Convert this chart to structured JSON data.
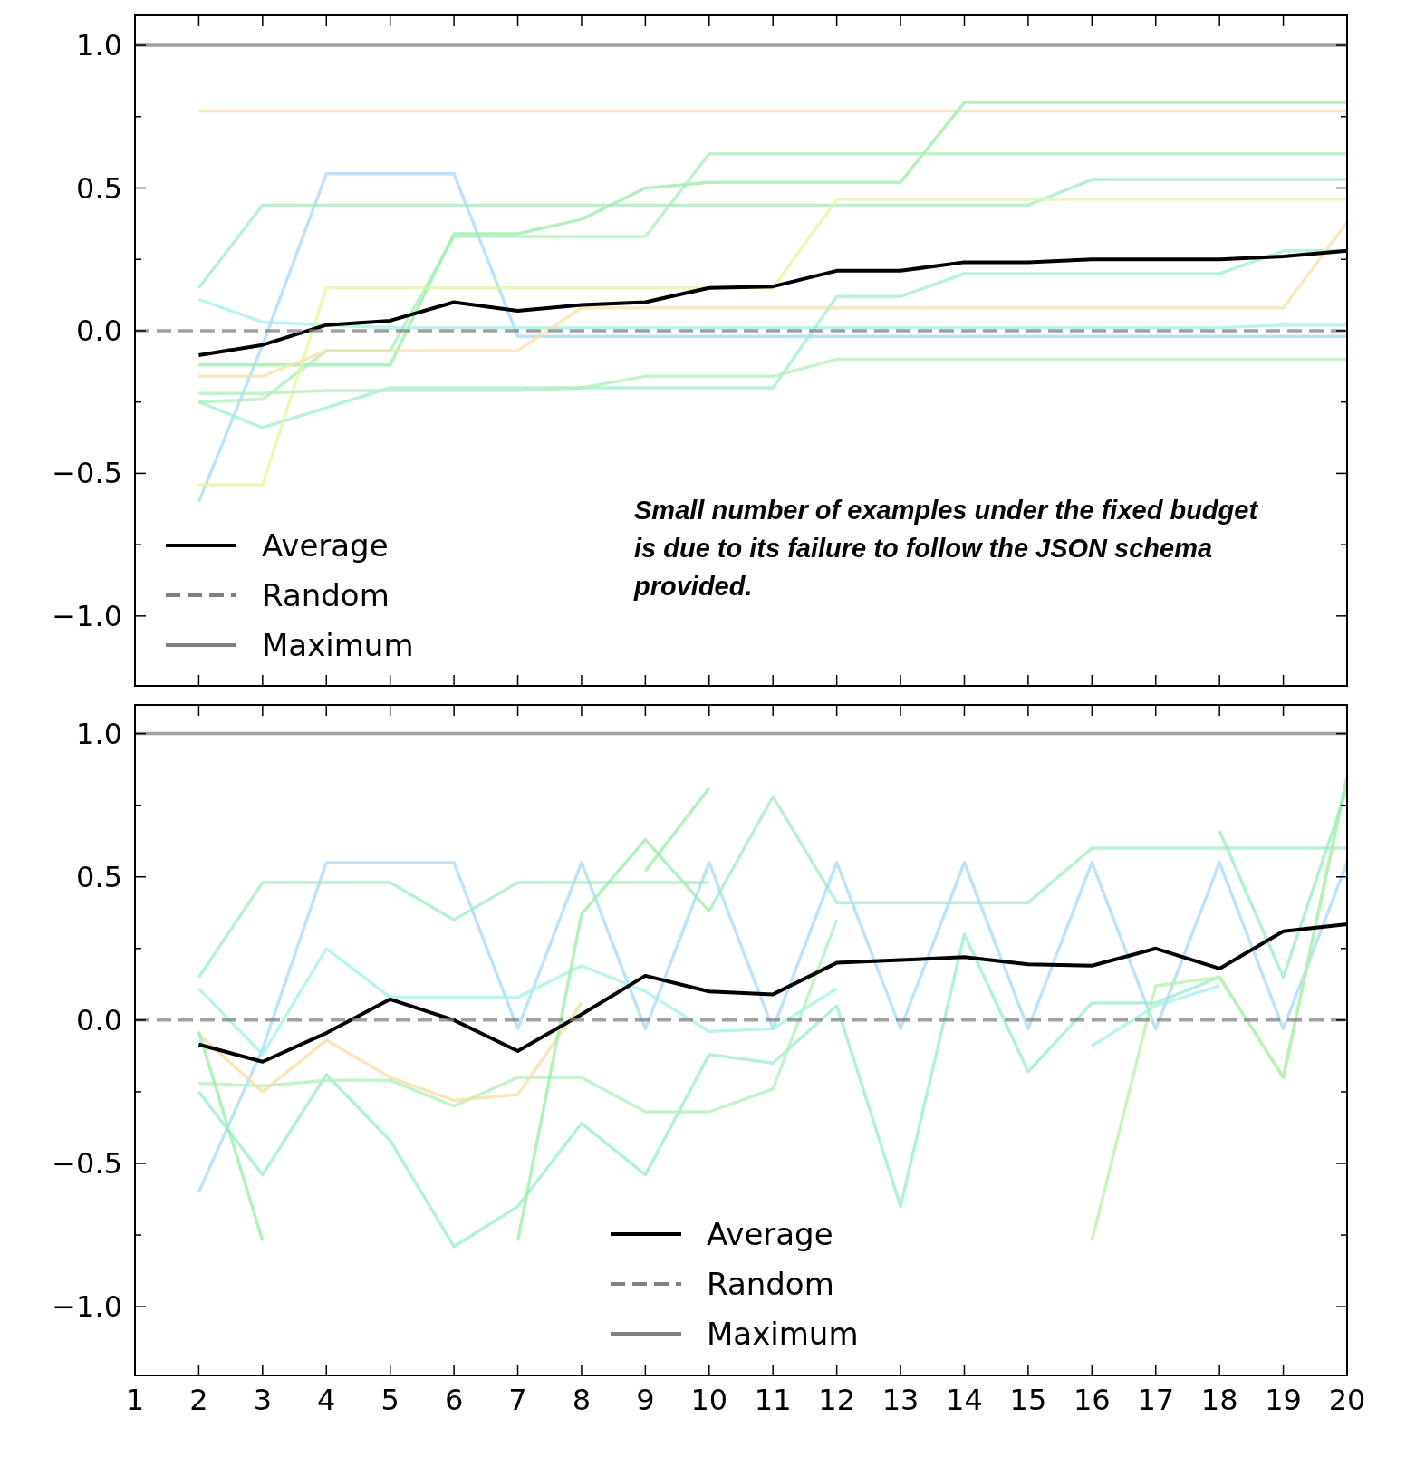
{
  "chart_data": [
    {
      "type": "line",
      "xlim": [
        1,
        20
      ],
      "ylim": [
        -1.245,
        1.105
      ],
      "xticks": [
        1,
        2,
        3,
        4,
        5,
        6,
        7,
        8,
        9,
        10,
        11,
        12,
        13,
        14,
        15,
        16,
        17,
        18,
        19,
        20
      ],
      "yticks": [
        {
          "value": -1,
          "label": "−1.0"
        },
        {
          "value": -0.75,
          "label": null
        },
        {
          "value": -0.5,
          "label": "−0.5"
        },
        {
          "value": -0.25,
          "label": null
        },
        {
          "value": 0,
          "label": "0.0"
        },
        {
          "value": 0.25,
          "label": null
        },
        {
          "value": 0.5,
          "label": "0.5"
        },
        {
          "value": 0.75,
          "label": null
        },
        {
          "value": 1,
          "label": "1.0"
        }
      ],
      "tick_labels": "y",
      "grid": false,
      "legend": "bottom left",
      "marker": "none",
      "line_style": "solid",
      "annotations": [
        "Small number of examples under the fixed budget is due to its failure to follow the JSON schema provided."
      ],
      "series": [
        {
          "color": "#f7dfa0",
          "x": [
            2,
            3,
            4,
            5,
            6,
            7,
            8,
            9,
            10,
            11,
            12,
            13,
            14,
            15,
            16,
            17,
            18,
            19,
            20
          ],
          "values": [
            0.77,
            0.77,
            0.77,
            0.77,
            0.77,
            0.77,
            0.77,
            0.77,
            0.77,
            0.77,
            0.77,
            0.77,
            0.77,
            0.77,
            0.77,
            0.77,
            0.77,
            0.77,
            0.77
          ]
        },
        {
          "color": "#a8d8f5",
          "x": [
            2,
            3,
            4,
            5,
            6,
            7,
            8,
            9,
            10,
            11,
            12,
            13,
            14,
            15,
            16,
            17,
            18,
            19,
            20
          ],
          "values": [
            -0.6,
            -0.05,
            0.55,
            0.55,
            0.55,
            -0.02,
            -0.02,
            -0.02,
            -0.02,
            -0.02,
            -0.02,
            -0.02,
            -0.02,
            -0.02,
            -0.02,
            -0.02,
            -0.02,
            -0.02,
            -0.02
          ]
        },
        {
          "color": "#a0ecc0",
          "x": [
            2,
            3,
            4,
            5,
            6,
            7,
            8,
            9,
            10,
            11,
            12,
            13,
            14,
            15,
            16,
            17,
            18,
            19,
            20
          ],
          "values": [
            0.15,
            0.44,
            0.44,
            0.44,
            0.44,
            0.44,
            0.44,
            0.44,
            0.44,
            0.44,
            0.44,
            0.44,
            0.44,
            0.44,
            0.53,
            0.53,
            0.53,
            0.53,
            0.53
          ]
        },
        {
          "color": "#98eca8",
          "x": [
            2,
            3,
            4,
            5,
            6,
            7,
            8,
            9,
            10,
            11,
            12,
            13,
            14,
            15,
            16,
            17,
            18,
            19,
            20
          ],
          "values": [
            -0.12,
            -0.12,
            -0.12,
            -0.12,
            0.34,
            0.34,
            0.39,
            0.5,
            0.52,
            0.52,
            0.52,
            0.52,
            0.8,
            0.8,
            0.8,
            0.8,
            0.8,
            0.8,
            0.8
          ]
        },
        {
          "color": "#a8eeb8",
          "x": [
            2,
            3,
            4,
            5,
            6,
            7,
            8,
            9,
            10,
            11,
            12,
            13,
            14,
            15,
            16,
            17,
            18,
            19,
            20
          ],
          "values": [
            -0.25,
            -0.24,
            -0.07,
            -0.07,
            0.33,
            0.33,
            0.33,
            0.33,
            0.62,
            0.62,
            0.62,
            0.62,
            0.62,
            0.62,
            0.62,
            0.62,
            0.62,
            0.62,
            0.62
          ]
        },
        {
          "color": "#a0f2ea",
          "x": [
            2,
            3,
            4,
            5,
            6,
            7,
            8,
            9,
            10,
            11,
            12,
            13,
            14,
            15,
            16,
            17,
            18,
            19,
            20
          ],
          "values": [
            0.11,
            0.03,
            0.02,
            0.01,
            0.01,
            0.01,
            0.01,
            0.01,
            0.01,
            0.01,
            0.01,
            0.01,
            0.01,
            0.01,
            0.01,
            0.01,
            0.01,
            0.02,
            0.02
          ]
        },
        {
          "color": "#9eeed0",
          "x": [
            2,
            3,
            4,
            5,
            6,
            7,
            8,
            9,
            10,
            11,
            12,
            13,
            14,
            15,
            16,
            17,
            18,
            19,
            20
          ],
          "values": [
            -0.25,
            -0.34,
            -0.27,
            -0.2,
            -0.2,
            -0.2,
            -0.2,
            -0.2,
            -0.2,
            -0.2,
            0.12,
            0.12,
            0.2,
            0.2,
            0.2,
            0.2,
            0.2,
            0.28,
            0.28
          ]
        },
        {
          "color": "#e2f5a0",
          "x": [
            2,
            3,
            4,
            5,
            6,
            7,
            8,
            9,
            10,
            11,
            12,
            13,
            14,
            15,
            16,
            17,
            18,
            19,
            20
          ],
          "values": [
            -0.54,
            -0.54,
            0.15,
            0.15,
            0.15,
            0.15,
            0.15,
            0.15,
            0.15,
            0.15,
            0.46,
            0.46,
            0.46,
            0.46,
            0.46,
            0.46,
            0.46,
            0.46,
            0.46
          ]
        },
        {
          "color": "#f5e0a8",
          "x": [
            2,
            3,
            4,
            5,
            6,
            7,
            8,
            9,
            10,
            11,
            12,
            13,
            14,
            15,
            16,
            17,
            18,
            19,
            20
          ],
          "values": [
            -0.16,
            -0.16,
            -0.07,
            -0.07,
            -0.07,
            -0.07,
            0.08,
            0.08,
            0.08,
            0.08,
            0.08,
            0.08,
            0.08,
            0.08,
            0.08,
            0.08,
            0.08,
            0.08,
            0.38
          ]
        },
        {
          "color": "#b0eebc",
          "x": [
            2,
            3,
            4,
            5,
            6,
            7,
            8,
            9,
            10,
            11,
            12,
            13,
            14,
            15,
            16,
            17,
            18,
            19,
            20
          ],
          "values": [
            -0.22,
            -0.22,
            -0.21,
            -0.21,
            -0.21,
            -0.21,
            -0.2,
            -0.16,
            -0.16,
            -0.16,
            -0.1,
            -0.1,
            -0.1,
            -0.1,
            -0.1,
            -0.1,
            -0.1,
            -0.1,
            -0.1
          ]
        },
        {
          "name": "Average",
          "color": "#000000",
          "x": [
            2,
            3,
            4,
            5,
            6,
            7,
            8,
            9,
            10,
            11,
            12,
            13,
            14,
            15,
            16,
            17,
            18,
            19,
            20
          ],
          "values": [
            -0.086,
            -0.05,
            0.02,
            0.035,
            0.1,
            0.07,
            0.09,
            0.1,
            0.15,
            0.155,
            0.21,
            0.21,
            0.24,
            0.24,
            0.25,
            0.25,
            0.25,
            0.26,
            0.28
          ]
        },
        {
          "name": "Random",
          "color": "#808080",
          "line_style": "dashed",
          "x": [
            1,
            20
          ],
          "values": [
            0,
            0
          ]
        },
        {
          "name": "Maximum",
          "color": "#808080",
          "x": [
            1,
            20
          ],
          "values": [
            1,
            1
          ]
        }
      ]
    },
    {
      "type": "line",
      "xlim": [
        1,
        20
      ],
      "ylim": [
        -1.24,
        1.1
      ],
      "xticks": [
        1,
        2,
        3,
        4,
        5,
        6,
        7,
        8,
        9,
        10,
        11,
        12,
        13,
        14,
        15,
        16,
        17,
        18,
        19,
        20
      ],
      "yticks": [
        {
          "value": -1,
          "label": "−1.0"
        },
        {
          "value": -0.75,
          "label": null
        },
        {
          "value": -0.5,
          "label": "−0.5"
        },
        {
          "value": -0.25,
          "label": null
        },
        {
          "value": 0,
          "label": "0.0"
        },
        {
          "value": 0.25,
          "label": null
        },
        {
          "value": 0.5,
          "label": "0.5"
        },
        {
          "value": 0.75,
          "label": null
        },
        {
          "value": 1,
          "label": "1.0"
        }
      ],
      "grid": false,
      "legend": "bottom",
      "marker": "none",
      "line_style": "solid",
      "series": [
        {
          "color": "#a8d8f5",
          "x": [
            2,
            3,
            4,
            5,
            6,
            7,
            8,
            9,
            10,
            11,
            12,
            13,
            14,
            15,
            16,
            17,
            18,
            19,
            20
          ],
          "values": [
            -0.6,
            -0.1,
            0.55,
            0.55,
            0.55,
            -0.03,
            0.55,
            -0.03,
            0.55,
            -0.03,
            0.55,
            -0.03,
            0.55,
            -0.03,
            0.55,
            -0.03,
            0.55,
            -0.03,
            0.55
          ]
        },
        {
          "color": "#a0ecc0",
          "x": [
            2,
            3,
            4,
            5,
            6,
            7,
            8,
            9,
            10
          ],
          "values": [
            0.15,
            0.48,
            0.48,
            0.48,
            0.35,
            0.48,
            0.48,
            0.48,
            0.48
          ]
        },
        {
          "color": "#a0ecc0",
          "x": [
            10,
            11,
            12,
            13,
            14,
            15,
            16,
            17,
            18,
            19,
            20
          ],
          "values": [
            0.38,
            0.78,
            0.41,
            0.41,
            0.41,
            0.41,
            0.6,
            0.6,
            0.6,
            0.6,
            0.6
          ]
        },
        {
          "color": "#98eccc",
          "x": [
            2,
            3,
            4,
            5,
            6,
            7,
            8,
            9,
            10,
            11,
            12,
            13,
            14,
            15,
            16,
            17,
            18,
            19,
            20
          ],
          "values": [
            -0.25,
            -0.54,
            -0.19,
            -0.42,
            -0.79,
            -0.65,
            -0.36,
            -0.54,
            -0.12,
            -0.15,
            0.05,
            -0.65,
            0.3,
            -0.18,
            0.06,
            0.06,
            0.15,
            -0.2,
            0.85
          ]
        },
        {
          "color": "#b0eebc",
          "x": [
            2,
            3,
            4,
            5,
            6,
            7,
            8,
            9,
            10,
            11,
            12
          ],
          "values": [
            -0.22,
            -0.23,
            -0.21,
            -0.21,
            -0.3,
            -0.2,
            -0.2,
            -0.32,
            -0.32,
            -0.24,
            0.35
          ]
        },
        {
          "color": "#f5dca0",
          "x": [
            2,
            3,
            4,
            5,
            6,
            7,
            8
          ],
          "values": [
            -0.05,
            -0.25,
            -0.07,
            -0.2,
            -0.28,
            -0.26,
            0.06
          ]
        },
        {
          "color": "#a0f2ea",
          "x": [
            2,
            3,
            4,
            5,
            6,
            7,
            8,
            9,
            10,
            11,
            12
          ],
          "values": [
            0.11,
            -0.12,
            0.25,
            0.08,
            0.08,
            0.08,
            0.19,
            0.1,
            -0.04,
            -0.03,
            0.11
          ]
        },
        {
          "color": "#98eca8",
          "x": [
            2,
            3
          ],
          "values": [
            -0.04,
            -0.77
          ]
        },
        {
          "color": "#98eca8",
          "x": [
            7,
            8,
            9,
            10
          ],
          "values": [
            -0.77,
            0.37,
            0.63,
            0.38
          ]
        },
        {
          "color": "#98eca8",
          "x": [
            9,
            10
          ],
          "values": [
            0.52,
            0.81
          ]
        },
        {
          "color": "#b8f0a8",
          "x": [
            16,
            17,
            18,
            19,
            20
          ],
          "values": [
            -0.77,
            0.12,
            0.15,
            -0.2,
            0.85
          ]
        },
        {
          "color": "#a0f2ea",
          "x": [
            16,
            17,
            18
          ],
          "values": [
            -0.09,
            0.05,
            0.12
          ]
        },
        {
          "color": "#98ecc0",
          "x": [
            18,
            19,
            20
          ],
          "values": [
            0.66,
            0.15,
            0.81
          ]
        },
        {
          "name": "Average",
          "color": "#000000",
          "x": [
            2,
            3,
            4,
            5,
            6,
            7,
            8,
            9,
            10,
            11,
            12,
            13,
            14,
            15,
            16,
            17,
            18,
            19,
            20
          ],
          "values": [
            -0.085,
            -0.145,
            -0.045,
            0.073,
            0.0,
            -0.108,
            0.02,
            0.155,
            0.1,
            0.09,
            0.2,
            0.21,
            0.22,
            0.195,
            0.19,
            0.25,
            0.18,
            0.31,
            0.335
          ]
        },
        {
          "name": "Random",
          "color": "#808080",
          "line_style": "dashed",
          "x": [
            1,
            20
          ],
          "values": [
            0,
            0
          ]
        },
        {
          "name": "Maximum",
          "color": "#808080",
          "x": [
            1,
            20
          ],
          "values": [
            1,
            1
          ]
        }
      ]
    }
  ]
}
